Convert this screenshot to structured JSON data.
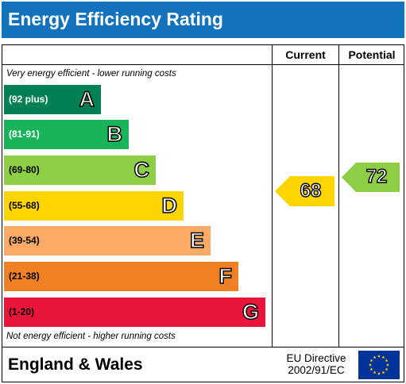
{
  "header": {
    "title": "Energy Efficiency Rating"
  },
  "columns": {
    "current": "Current",
    "potential": "Potential"
  },
  "notes": {
    "top": "Very energy efficient - lower running costs",
    "bottom": "Not energy efficient - higher running costs"
  },
  "bands": [
    {
      "letter": "A",
      "range": "(92 plus)",
      "color": "#008054",
      "text_color": "#ffffff"
    },
    {
      "letter": "B",
      "range": "(81-91)",
      "color": "#19b459",
      "text_color": "#ffffff"
    },
    {
      "letter": "C",
      "range": "(69-80)",
      "color": "#8dce46",
      "text_color": "#000000"
    },
    {
      "letter": "D",
      "range": "(55-68)",
      "color": "#ffd500",
      "text_color": "#000000"
    },
    {
      "letter": "E",
      "range": "(39-54)",
      "color": "#fcaa65",
      "text_color": "#000000"
    },
    {
      "letter": "F",
      "range": "(21-38)",
      "color": "#ef8023",
      "text_color": "#000000"
    },
    {
      "letter": "G",
      "range": "(1-20)",
      "color": "#e9153b",
      "text_color": "#000000"
    }
  ],
  "ratings": {
    "current": {
      "value": "68",
      "band": "D",
      "color": "#ffd500"
    },
    "potential": {
      "value": "72",
      "band": "C",
      "color": "#8dce46"
    }
  },
  "footer": {
    "region": "England & Wales",
    "directive_line1": "EU Directive",
    "directive_line2": "2002/91/EC",
    "flag_icon": "eu-flag-icon",
    "flag_color": "#003399",
    "star_color": "#ffcc00"
  }
}
